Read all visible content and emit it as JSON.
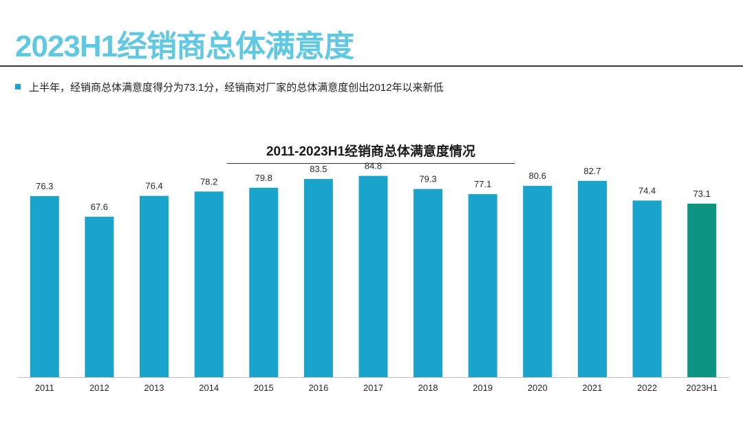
{
  "page": {
    "title": "2023H1经销商总体满意度",
    "bullet": "上半年，经销商总体满意度得分为73.1分，经销商对厂家的总体满意度创出2012年以来新低"
  },
  "colors": {
    "title": "#5fc9e3",
    "accent": "#1aa3cb",
    "highlight": "#0c9480",
    "rule": "#333333",
    "axis": "#bfbfbf",
    "text": "#262626"
  },
  "chart_data": {
    "type": "bar",
    "title": "2011-2023H1经销商总体满意度情况",
    "categories": [
      "2011",
      "2012",
      "2013",
      "2014",
      "2015",
      "2016",
      "2017",
      "2018",
      "2019",
      "2020",
      "2021",
      "2022",
      "2023H1"
    ],
    "values": [
      76.3,
      67.6,
      76.4,
      78.2,
      79.8,
      83.5,
      84.8,
      79.3,
      77.1,
      80.6,
      82.7,
      74.4,
      73.1
    ],
    "value_labels": [
      "76.3",
      "67.6",
      "76.4",
      "78.2",
      "79.8",
      "83.5",
      "84.8",
      "79.3",
      "77.1",
      "80.6",
      "82.7",
      "74.4",
      "73.1"
    ],
    "highlight_category": "2023H1",
    "ylim": [
      0,
      87
    ],
    "grid": false,
    "xlabel": "",
    "ylabel": ""
  }
}
